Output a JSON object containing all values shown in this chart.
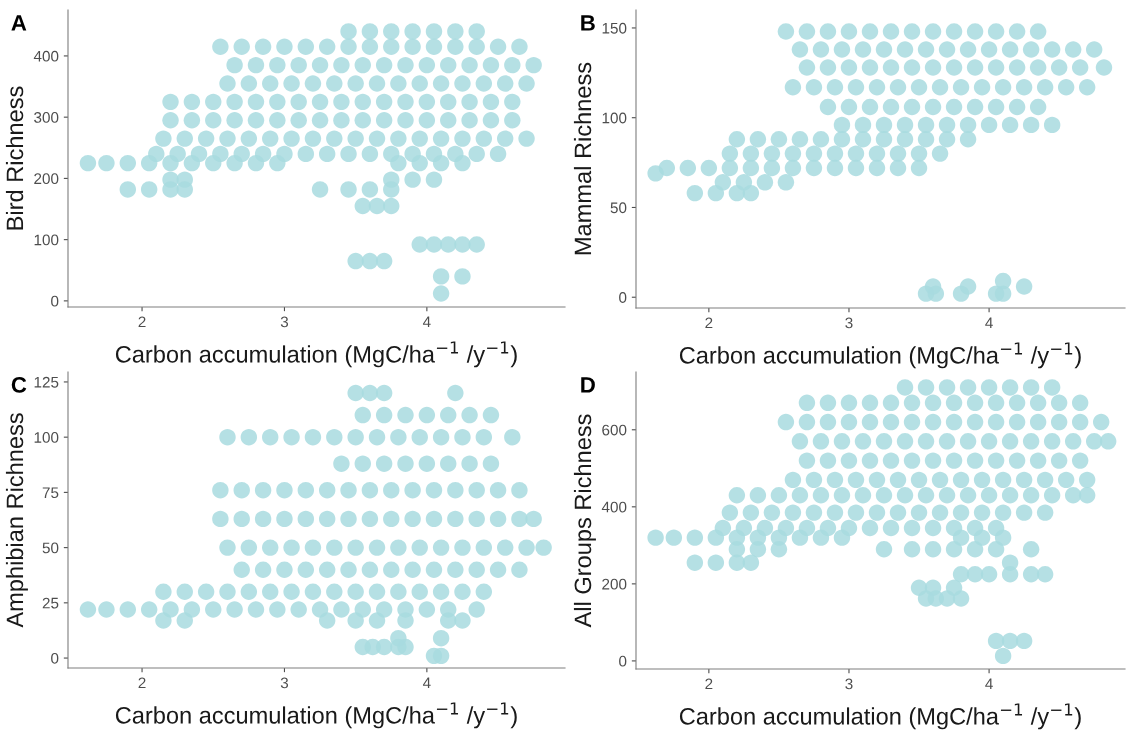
{
  "chart_data": [
    {
      "type": "scatter",
      "title": "A",
      "xlabel": "Carbon accumulation (MgC/ha$^{−1}$ /y$^{−1}$)",
      "ylabel": "Bird Richness",
      "xlim": [
        1.48,
        4.97
      ],
      "ylim": [
        -10,
        475
      ],
      "xticks": [
        2,
        3,
        4
      ],
      "yticks": [
        0,
        100,
        200,
        300,
        400
      ],
      "marker": "circle",
      "series": [
        {
          "color": "#a8dadf",
          "x": [
            3.45,
            3.6,
            3.75,
            3.9,
            4.05,
            4.2,
            4.35,
            2.55,
            2.7,
            2.85,
            3.0,
            3.15,
            3.3,
            3.45,
            3.6,
            3.75,
            3.9,
            4.05,
            4.2,
            4.35,
            4.5,
            4.65,
            2.65,
            2.8,
            2.95,
            3.1,
            3.25,
            3.4,
            3.55,
            3.7,
            3.85,
            4.0,
            4.15,
            4.3,
            4.45,
            4.6,
            4.75,
            2.6,
            2.75,
            2.9,
            3.05,
            3.2,
            3.35,
            3.5,
            3.65,
            3.8,
            3.95,
            4.1,
            4.25,
            4.4,
            4.55,
            4.7,
            2.2,
            2.35,
            2.5,
            2.65,
            2.8,
            2.95,
            3.1,
            3.25,
            3.4,
            3.55,
            3.7,
            3.85,
            4.0,
            4.15,
            4.3,
            4.45,
            4.6,
            2.2,
            2.35,
            2.5,
            2.65,
            2.8,
            2.95,
            3.1,
            3.25,
            3.4,
            3.55,
            3.7,
            3.85,
            4.0,
            4.15,
            4.3,
            4.45,
            4.6,
            2.15,
            2.3,
            2.45,
            2.6,
            2.75,
            2.9,
            3.05,
            3.2,
            3.35,
            3.5,
            3.65,
            3.8,
            3.95,
            4.1,
            4.25,
            4.4,
            4.55,
            4.7,
            2.1,
            2.25,
            2.4,
            2.55,
            2.7,
            2.85,
            3.0,
            3.15,
            3.3,
            3.45,
            3.6,
            3.75,
            3.9,
            4.05,
            4.2,
            4.35,
            4.5,
            1.62,
            1.75,
            1.9,
            2.05,
            2.2,
            2.35,
            2.5,
            2.65,
            2.8,
            2.95,
            3.8,
            3.95,
            4.1,
            4.25,
            2.2,
            2.3,
            3.75,
            3.9,
            4.05,
            1.9,
            2.05,
            2.2,
            2.3,
            3.25,
            3.45,
            3.6,
            3.75,
            3.55,
            3.65,
            3.75,
            3.95,
            4.05,
            4.15,
            4.25,
            4.35,
            3.5,
            3.6,
            3.7,
            4.1,
            4.25,
            4.1
          ],
          "values": [
            440,
            440,
            440,
            440,
            440,
            440,
            440,
            415,
            415,
            415,
            415,
            415,
            415,
            415,
            415,
            415,
            415,
            415,
            415,
            415,
            415,
            415,
            385,
            385,
            385,
            385,
            385,
            385,
            385,
            385,
            385,
            385,
            385,
            385,
            385,
            385,
            385,
            355,
            355,
            355,
            355,
            355,
            355,
            355,
            355,
            355,
            355,
            355,
            355,
            355,
            355,
            355,
            325,
            325,
            325,
            325,
            325,
            325,
            325,
            325,
            325,
            325,
            325,
            325,
            325,
            325,
            325,
            325,
            325,
            295,
            295,
            295,
            295,
            295,
            295,
            295,
            295,
            295,
            295,
            295,
            295,
            295,
            295,
            295,
            295,
            295,
            265,
            265,
            265,
            265,
            265,
            265,
            265,
            265,
            265,
            265,
            265,
            265,
            265,
            265,
            265,
            265,
            265,
            265,
            240,
            240,
            240,
            240,
            240,
            240,
            240,
            240,
            240,
            240,
            240,
            240,
            240,
            240,
            240,
            240,
            240,
            225,
            225,
            225,
            225,
            225,
            225,
            225,
            225,
            225,
            225,
            225,
            225,
            225,
            225,
            198,
            198,
            198,
            198,
            198,
            182,
            182,
            182,
            182,
            182,
            182,
            182,
            182,
            155,
            155,
            155,
            92,
            92,
            92,
            92,
            92,
            65,
            65,
            65,
            40,
            40,
            12
          ]
        }
      ]
    },
    {
      "type": "scatter",
      "title": "B",
      "xlabel": "Carbon accumulation (MgC/ha$^{−1}$ /y$^{−1}$)",
      "ylabel": "Mammal Richness",
      "xlim": [
        1.48,
        4.97
      ],
      "ylim": [
        -6,
        160
      ],
      "xticks": [
        2,
        3,
        4
      ],
      "yticks": [
        0,
        50,
        100,
        150
      ],
      "marker": "circle",
      "series": [
        {
          "color": "#a8dadf",
          "x": [
            2.55,
            2.7,
            2.85,
            3.0,
            3.15,
            3.3,
            3.45,
            3.6,
            3.75,
            3.9,
            4.05,
            4.2,
            4.35,
            2.65,
            2.8,
            2.95,
            3.1,
            3.25,
            3.4,
            3.55,
            3.7,
            3.85,
            4.0,
            4.15,
            4.3,
            4.45,
            4.6,
            4.75,
            2.7,
            2.85,
            3.0,
            3.15,
            3.3,
            3.45,
            3.6,
            3.75,
            3.9,
            4.05,
            4.2,
            4.35,
            4.5,
            4.65,
            4.82,
            2.6,
            2.75,
            2.9,
            3.05,
            3.2,
            3.35,
            3.5,
            3.65,
            3.8,
            3.95,
            4.1,
            4.25,
            4.4,
            4.55,
            4.7,
            2.85,
            3.0,
            3.15,
            3.3,
            3.45,
            3.6,
            3.75,
            3.9,
            4.05,
            4.2,
            4.35,
            2.95,
            3.1,
            3.25,
            3.4,
            3.55,
            3.7,
            3.85,
            4.0,
            4.15,
            4.3,
            4.45,
            2.2,
            2.35,
            2.5,
            2.65,
            2.8,
            2.95,
            3.1,
            3.25,
            3.4,
            3.55,
            3.7,
            3.85,
            2.15,
            2.3,
            2.45,
            2.6,
            2.75,
            2.9,
            3.05,
            3.2,
            3.35,
            3.5,
            3.65,
            1.7,
            1.85,
            2.0,
            2.15,
            2.3,
            2.45,
            2.6,
            2.75,
            2.9,
            3.05,
            3.2,
            3.35,
            3.5,
            2.1,
            2.25,
            2.4,
            2.55,
            1.9,
            2.05,
            2.2,
            2.3,
            1.62,
            3.55,
            3.62,
            3.8,
            4.05,
            4.1,
            3.6,
            3.85,
            4.25,
            4.1
          ],
          "values": [
            148,
            148,
            148,
            148,
            148,
            148,
            148,
            148,
            148,
            148,
            148,
            148,
            148,
            138,
            138,
            138,
            138,
            138,
            138,
            138,
            138,
            138,
            138,
            138,
            138,
            138,
            138,
            138,
            128,
            128,
            128,
            128,
            128,
            128,
            128,
            128,
            128,
            128,
            128,
            128,
            128,
            128,
            128,
            117,
            117,
            117,
            117,
            117,
            117,
            117,
            117,
            117,
            117,
            117,
            117,
            117,
            117,
            117,
            106,
            106,
            106,
            106,
            106,
            106,
            106,
            106,
            106,
            106,
            106,
            96,
            96,
            96,
            96,
            96,
            96,
            96,
            96,
            96,
            96,
            96,
            88,
            88,
            88,
            88,
            88,
            88,
            88,
            88,
            88,
            88,
            88,
            88,
            80,
            80,
            80,
            80,
            80,
            80,
            80,
            80,
            80,
            80,
            80,
            72,
            72,
            72,
            72,
            72,
            72,
            72,
            72,
            72,
            72,
            72,
            72,
            72,
            64,
            64,
            64,
            64,
            58,
            58,
            58,
            58,
            69,
            2,
            2,
            2,
            2,
            2,
            6,
            6,
            6,
            9
          ]
        }
      ]
    },
    {
      "type": "scatter",
      "title": "C",
      "xlabel": "Carbon accumulation (MgC/ha$^{−1}$ /y$^{−1}$)",
      "ylabel": "Amphibian Richness",
      "xlim": [
        1.48,
        4.97
      ],
      "ylim": [
        -4.5,
        129.5
      ],
      "xticks": [
        2,
        3,
        4
      ],
      "yticks": [
        0,
        25,
        50,
        75,
        100,
        125
      ],
      "marker": "circle",
      "series": [
        {
          "color": "#a8dadf",
          "x": [
            3.5,
            3.6,
            3.7,
            4.2,
            3.55,
            3.7,
            3.85,
            4.0,
            4.15,
            4.3,
            4.45,
            2.6,
            2.75,
            2.9,
            3.05,
            3.2,
            3.35,
            3.5,
            3.65,
            3.8,
            3.95,
            4.1,
            4.25,
            4.4,
            4.6,
            3.4,
            3.55,
            3.7,
            3.85,
            4.0,
            4.15,
            4.3,
            4.45,
            2.55,
            2.7,
            2.85,
            3.0,
            3.15,
            3.3,
            3.45,
            3.6,
            3.75,
            3.9,
            4.05,
            4.2,
            4.35,
            4.5,
            4.65,
            2.55,
            2.7,
            2.85,
            3.0,
            3.15,
            3.3,
            3.45,
            3.6,
            3.75,
            3.9,
            4.05,
            4.2,
            4.35,
            4.5,
            4.65,
            4.75,
            2.6,
            2.75,
            2.9,
            3.05,
            3.2,
            3.35,
            3.5,
            3.65,
            3.8,
            3.95,
            4.1,
            4.25,
            4.4,
            4.55,
            4.7,
            4.82,
            2.7,
            2.85,
            3.0,
            3.15,
            3.3,
            3.45,
            3.6,
            3.75,
            3.9,
            4.05,
            4.2,
            4.35,
            4.5,
            4.65,
            2.15,
            2.3,
            2.45,
            2.6,
            2.75,
            2.9,
            3.05,
            3.2,
            3.35,
            3.5,
            3.65,
            3.8,
            3.95,
            4.1,
            4.25,
            4.4,
            1.62,
            1.75,
            1.9,
            2.05,
            2.2,
            2.35,
            2.5,
            2.65,
            2.8,
            2.95,
            3.1,
            3.25,
            3.4,
            3.55,
            3.7,
            3.85,
            4.0,
            4.15,
            4.35,
            2.15,
            2.3,
            3.3,
            3.5,
            3.65,
            3.85,
            4.15,
            4.25,
            3.55,
            3.62,
            3.7,
            3.8,
            3.85,
            3.8,
            4.1,
            4.05,
            4.1
          ],
          "values": [
            120,
            120,
            120,
            120,
            110,
            110,
            110,
            110,
            110,
            110,
            110,
            100,
            100,
            100,
            100,
            100,
            100,
            100,
            100,
            100,
            100,
            100,
            100,
            100,
            100,
            88,
            88,
            88,
            88,
            88,
            88,
            88,
            88,
            76,
            76,
            76,
            76,
            76,
            76,
            76,
            76,
            76,
            76,
            76,
            76,
            76,
            76,
            76,
            63,
            63,
            63,
            63,
            63,
            63,
            63,
            63,
            63,
            63,
            63,
            63,
            63,
            63,
            63,
            63,
            50,
            50,
            50,
            50,
            50,
            50,
            50,
            50,
            50,
            50,
            50,
            50,
            50,
            50,
            50,
            50,
            40,
            40,
            40,
            40,
            40,
            40,
            40,
            40,
            40,
            40,
            40,
            40,
            40,
            40,
            30,
            30,
            30,
            30,
            30,
            30,
            30,
            30,
            30,
            30,
            30,
            30,
            30,
            30,
            30,
            30,
            22,
            22,
            22,
            22,
            22,
            22,
            22,
            22,
            22,
            22,
            22,
            22,
            22,
            22,
            22,
            22,
            22,
            22,
            22,
            17,
            17,
            17,
            17,
            17,
            17,
            17,
            17,
            5,
            5,
            5,
            5,
            5,
            9,
            9,
            1,
            1
          ]
        }
      ]
    },
    {
      "type": "scatter",
      "title": "D",
      "xlabel": "Carbon accumulation (MgC/ha$^{−1}$ /y$^{−1}$)",
      "ylabel": "All Groups Richness",
      "xlim": [
        1.48,
        4.97
      ],
      "ylim": [
        -21,
        750
      ],
      "xticks": [
        2,
        3,
        4
      ],
      "yticks": [
        0,
        200,
        400,
        600
      ],
      "marker": "circle",
      "series": [
        {
          "color": "#a8dadf",
          "x": [
            3.4,
            3.55,
            3.7,
            3.85,
            4.0,
            4.15,
            4.3,
            4.45,
            2.7,
            2.85,
            3.0,
            3.15,
            3.3,
            3.45,
            3.6,
            3.75,
            3.9,
            4.05,
            4.2,
            4.35,
            4.5,
            4.65,
            2.55,
            2.7,
            2.85,
            3.0,
            3.15,
            3.3,
            3.45,
            3.6,
            3.75,
            3.9,
            4.05,
            4.2,
            4.35,
            4.5,
            4.65,
            4.8,
            2.65,
            2.8,
            2.95,
            3.1,
            3.25,
            3.4,
            3.55,
            3.7,
            3.85,
            4.0,
            4.15,
            4.3,
            4.45,
            4.6,
            4.75,
            4.85,
            2.7,
            2.85,
            3.0,
            3.15,
            3.3,
            3.45,
            3.6,
            3.75,
            3.9,
            4.05,
            4.2,
            4.35,
            4.5,
            4.65,
            2.6,
            2.75,
            2.9,
            3.05,
            3.2,
            3.35,
            3.5,
            3.65,
            3.8,
            3.95,
            4.1,
            4.25,
            4.4,
            4.55,
            4.7,
            2.2,
            2.35,
            2.5,
            2.65,
            2.8,
            2.95,
            3.1,
            3.25,
            3.4,
            3.55,
            3.7,
            3.85,
            4.0,
            4.15,
            4.3,
            4.45,
            4.6,
            4.7,
            2.15,
            2.3,
            2.45,
            2.6,
            2.75,
            2.9,
            3.05,
            3.2,
            3.35,
            3.5,
            3.65,
            3.8,
            3.95,
            4.1,
            4.25,
            4.4,
            2.1,
            2.25,
            2.4,
            2.55,
            2.7,
            2.85,
            3.0,
            3.15,
            3.3,
            3.45,
            3.6,
            3.75,
            3.9,
            4.05,
            1.62,
            1.75,
            1.9,
            2.05,
            2.2,
            2.35,
            2.5,
            2.65,
            2.8,
            2.95,
            3.8,
            3.95,
            4.1,
            2.2,
            2.35,
            2.5,
            3.25,
            3.45,
            3.6,
            3.75,
            3.9,
            4.05,
            4.3,
            1.9,
            2.05,
            2.2,
            2.3,
            4.15,
            3.8,
            3.9,
            4.0,
            4.15,
            4.3,
            4.4,
            3.5,
            3.6,
            3.75,
            3.55,
            3.62,
            3.7,
            3.8,
            4.05,
            4.15,
            4.25,
            4.1
          ],
          "values": [
            710,
            710,
            710,
            710,
            710,
            710,
            710,
            710,
            670,
            670,
            670,
            670,
            670,
            670,
            670,
            670,
            670,
            670,
            670,
            670,
            670,
            670,
            620,
            620,
            620,
            620,
            620,
            620,
            620,
            620,
            620,
            620,
            620,
            620,
            620,
            620,
            620,
            620,
            570,
            570,
            570,
            570,
            570,
            570,
            570,
            570,
            570,
            570,
            570,
            570,
            570,
            570,
            570,
            570,
            520,
            520,
            520,
            520,
            520,
            520,
            520,
            520,
            520,
            520,
            520,
            520,
            520,
            520,
            470,
            470,
            470,
            470,
            470,
            470,
            470,
            470,
            470,
            470,
            470,
            470,
            470,
            470,
            470,
            430,
            430,
            430,
            430,
            430,
            430,
            430,
            430,
            430,
            430,
            430,
            430,
            430,
            430,
            430,
            430,
            430,
            430,
            385,
            385,
            385,
            385,
            385,
            385,
            385,
            385,
            385,
            385,
            385,
            385,
            385,
            385,
            385,
            385,
            345,
            345,
            345,
            345,
            345,
            345,
            345,
            345,
            345,
            345,
            345,
            345,
            345,
            345,
            320,
            320,
            320,
            320,
            320,
            320,
            320,
            320,
            320,
            320,
            320,
            320,
            320,
            290,
            290,
            290,
            290,
            290,
            290,
            290,
            290,
            290,
            290,
            255,
            255,
            255,
            255,
            255,
            225,
            225,
            225,
            225,
            225,
            225,
            190,
            190,
            190,
            162,
            162,
            162,
            162,
            52,
            52,
            52,
            13
          ]
        }
      ]
    }
  ]
}
